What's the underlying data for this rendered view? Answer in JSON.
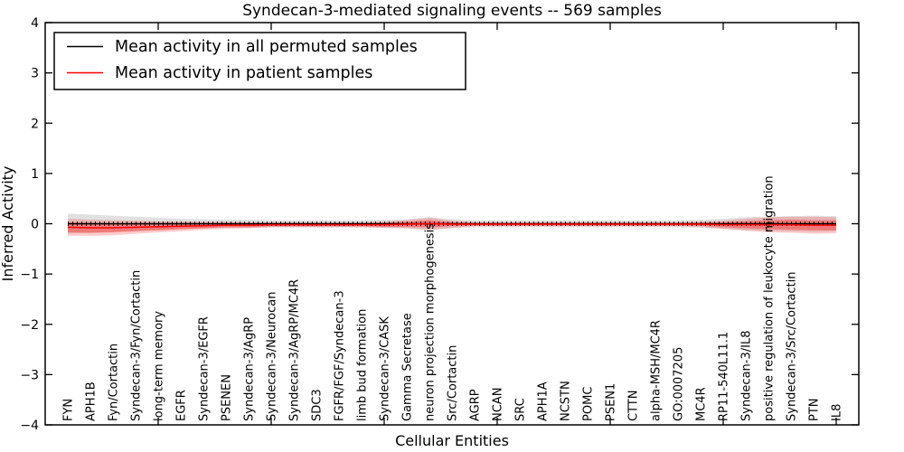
{
  "chart_data": {
    "type": "line",
    "title": "Syndecan-3-mediated signaling events -- 569 samples",
    "xlabel": "Cellular Entities",
    "ylabel": "Inferred Activity",
    "ylim": [
      -4,
      4
    ],
    "ytick_labels": [
      "4",
      "3",
      "2",
      "1",
      "0",
      "−1",
      "−2",
      "−3",
      "−4"
    ],
    "ytick_values": [
      4,
      3,
      2,
      1,
      0,
      -1,
      -2,
      -3,
      -4
    ],
    "x_major_tick_units": [
      5,
      10,
      15,
      20,
      25,
      30,
      35
    ],
    "grid": false,
    "categories": [
      "FYN",
      "APH1B",
      "Fyn/Cortactin",
      "Syndecan-3/Fyn/Cortactin",
      "long-term memory",
      "EGFR",
      "Syndecan-3/EGFR",
      "PSENEN",
      "Syndecan-3/AgRP",
      "Syndecan-3/Neurocan",
      "Syndecan-3/AgRP/MC4R",
      "SDC3",
      "FGFR/FGF/Syndecan-3",
      "limb bud formation",
      "Syndecan-3/CASK",
      "Gamma Secretase",
      "neuron projection morphogenesis",
      "Src/Cortactin",
      "AGRP",
      "NCAN",
      "SRC",
      "APH1A",
      "NCSTN",
      "POMC",
      "PSEN1",
      "CTTN",
      "alpha-MSH/MC4R",
      "GO:0007205",
      "MC4R",
      "RP11-540L11.1",
      "Syndecan-3/IL8",
      "positive regulation of leukocyte migration",
      "Syndecan-3/Src/Cortactin",
      "PTN",
      "IL8"
    ],
    "legend": {
      "position": "upper left",
      "entries": [
        {
          "label": "Mean activity in all permuted samples",
          "color": "#000000"
        },
        {
          "label": "Mean activity in patient samples",
          "color": "#ff0000"
        }
      ]
    },
    "series": [
      {
        "name": "Mean activity in all permuted samples",
        "color": "#000000",
        "values": [
          0,
          0,
          0,
          0,
          0,
          0,
          0,
          0,
          0,
          0,
          0,
          0,
          0,
          0,
          0,
          0,
          0,
          0,
          0,
          0,
          0,
          0,
          0,
          0,
          0,
          0,
          0,
          0,
          0,
          0,
          0,
          0,
          0,
          0,
          0
        ]
      },
      {
        "name": "Mean activity in patient samples",
        "color": "#ff0000",
        "values": [
          -0.07,
          -0.08,
          -0.08,
          -0.07,
          -0.06,
          -0.05,
          -0.04,
          -0.03,
          -0.03,
          -0.02,
          -0.02,
          -0.02,
          -0.02,
          -0.02,
          -0.02,
          -0.01,
          0.0,
          -0.01,
          -0.01,
          -0.01,
          -0.01,
          -0.01,
          -0.01,
          -0.01,
          -0.01,
          -0.01,
          -0.01,
          -0.01,
          -0.01,
          -0.02,
          -0.02,
          -0.02,
          -0.02,
          -0.03,
          -0.03
        ]
      }
    ],
    "bands": [
      {
        "name": "permuted-sample-spread",
        "center_series": 0,
        "color": "#555555",
        "opacity": 0.18,
        "half_widths": [
          0.2,
          0.18,
          0.16,
          0.14,
          0.12,
          0.1,
          0.09,
          0.08,
          0.08,
          0.07,
          0.07,
          0.07,
          0.07,
          0.07,
          0.08,
          0.09,
          0.13,
          0.09,
          0.07,
          0.07,
          0.07,
          0.07,
          0.07,
          0.07,
          0.07,
          0.07,
          0.07,
          0.07,
          0.08,
          0.1,
          0.13,
          0.14,
          0.15,
          0.16,
          0.15
        ]
      },
      {
        "name": "patient-sample-spread-outer",
        "center_series": 1,
        "color": "#ff0000",
        "opacity": 0.2,
        "half_widths": [
          0.17,
          0.16,
          0.15,
          0.13,
          0.11,
          0.1,
          0.08,
          0.07,
          0.06,
          0.05,
          0.05,
          0.05,
          0.05,
          0.05,
          0.06,
          0.08,
          0.12,
          0.07,
          0.04,
          0.04,
          0.04,
          0.04,
          0.04,
          0.04,
          0.04,
          0.04,
          0.04,
          0.04,
          0.05,
          0.08,
          0.12,
          0.15,
          0.16,
          0.17,
          0.16
        ]
      },
      {
        "name": "patient-sample-spread-inner",
        "center_series": 1,
        "color": "#ff0000",
        "opacity": 0.32,
        "half_widths": [
          0.1,
          0.1,
          0.09,
          0.08,
          0.07,
          0.06,
          0.05,
          0.04,
          0.04,
          0.03,
          0.03,
          0.03,
          0.03,
          0.03,
          0.04,
          0.05,
          0.07,
          0.04,
          0.025,
          0.025,
          0.025,
          0.025,
          0.025,
          0.025,
          0.025,
          0.025,
          0.025,
          0.025,
          0.03,
          0.05,
          0.07,
          0.09,
          0.1,
          0.1,
          0.1
        ]
      }
    ]
  }
}
